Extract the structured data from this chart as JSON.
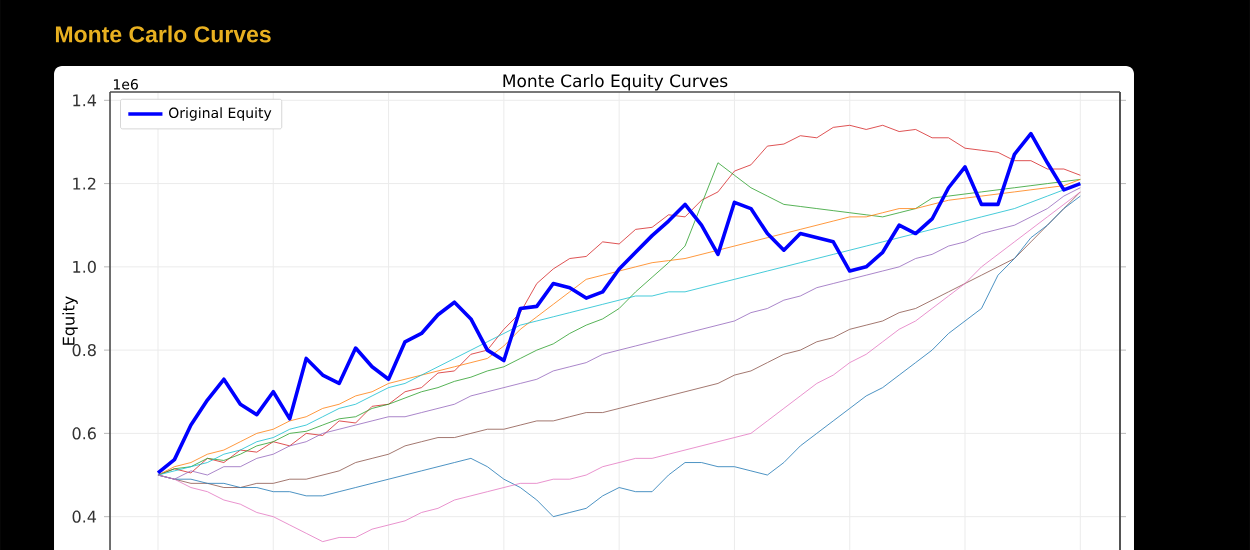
{
  "chart_data": {
    "type": "line",
    "title": "Monte Carlo Curves",
    "subtitle": "Monte Carlo Equity Curves",
    "ylabel": "Equity",
    "annotations": [
      "1e6"
    ],
    "categories": [
      null,
      null,
      null,
      null,
      null,
      null,
      null,
      null,
      null,
      null,
      null,
      null,
      null,
      null,
      null,
      null,
      null,
      null,
      null,
      null,
      null,
      null,
      null,
      null,
      null,
      null,
      null,
      null,
      null,
      null,
      null,
      null,
      null,
      null,
      null,
      null,
      null,
      null,
      null,
      null,
      null,
      null,
      null,
      null,
      null,
      null,
      null,
      null,
      null,
      null,
      null,
      null,
      null,
      null,
      null,
      null,
      null
    ],
    "series": [
      {
        "color": "#d62728",
        "values": [
          0.5,
          0.515,
          0.505,
          0.54,
          0.53,
          0.56,
          0.555,
          0.58,
          0.57,
          0.6,
          0.595,
          0.63,
          0.625,
          0.665,
          0.67,
          0.7,
          0.71,
          0.745,
          0.75,
          0.79,
          0.8,
          0.85,
          0.89,
          0.96,
          0.995,
          1.02,
          1.025,
          1.06,
          1.055,
          1.09,
          1.095,
          1.125,
          1.12,
          1.16,
          1.18,
          1.23,
          1.245,
          1.29,
          1.295,
          1.315,
          1.31,
          1.335,
          1.34,
          1.33,
          1.34,
          1.325,
          1.33,
          1.31,
          1.31,
          1.285,
          1.28,
          1.275,
          1.255,
          1.255,
          1.235,
          1.235,
          1.22
        ]
      },
      {
        "color": "#2ca02c",
        "values": [
          0.5,
          0.515,
          0.52,
          0.54,
          0.535,
          0.55,
          0.57,
          0.58,
          0.6,
          0.605,
          0.62,
          0.635,
          0.64,
          0.66,
          0.67,
          0.685,
          0.7,
          0.71,
          0.725,
          0.735,
          0.75,
          0.76,
          0.78,
          0.8,
          0.815,
          0.84,
          0.86,
          0.875,
          0.9,
          0.94,
          0.975,
          1.01,
          1.05,
          1.15,
          1.25,
          1.22,
          1.19,
          1.17,
          1.15,
          1.145,
          1.14,
          1.135,
          1.13,
          1.125,
          1.12,
          1.13,
          1.14,
          1.165,
          1.17,
          1.175,
          1.18,
          1.185,
          1.19,
          1.195,
          1.2,
          1.205,
          1.21
        ]
      },
      {
        "color": "#ff7f0e",
        "values": [
          0.5,
          0.52,
          0.53,
          0.55,
          0.56,
          0.58,
          0.6,
          0.61,
          0.63,
          0.64,
          0.66,
          0.67,
          0.69,
          0.7,
          0.72,
          0.73,
          0.74,
          0.75,
          0.76,
          0.77,
          0.78,
          0.81,
          0.85,
          0.88,
          0.91,
          0.94,
          0.97,
          0.98,
          0.99,
          1.0,
          1.01,
          1.015,
          1.02,
          1.03,
          1.04,
          1.05,
          1.06,
          1.07,
          1.08,
          1.09,
          1.1,
          1.11,
          1.12,
          1.12,
          1.13,
          1.14,
          1.14,
          1.15,
          1.16,
          1.165,
          1.17,
          1.175,
          1.18,
          1.185,
          1.19,
          1.195,
          1.21
        ]
      },
      {
        "color": "#9467bd",
        "values": [
          0.5,
          0.49,
          0.51,
          0.5,
          0.52,
          0.52,
          0.54,
          0.55,
          0.57,
          0.58,
          0.6,
          0.61,
          0.62,
          0.63,
          0.64,
          0.64,
          0.65,
          0.66,
          0.67,
          0.69,
          0.7,
          0.71,
          0.72,
          0.73,
          0.75,
          0.76,
          0.77,
          0.79,
          0.8,
          0.81,
          0.82,
          0.83,
          0.84,
          0.85,
          0.86,
          0.87,
          0.89,
          0.9,
          0.92,
          0.93,
          0.95,
          0.96,
          0.97,
          0.98,
          0.99,
          1.0,
          1.02,
          1.03,
          1.05,
          1.06,
          1.08,
          1.09,
          1.1,
          1.12,
          1.14,
          1.17,
          1.19
        ]
      },
      {
        "color": "#8c564b",
        "values": [
          0.5,
          0.49,
          0.48,
          0.48,
          0.47,
          0.47,
          0.48,
          0.48,
          0.49,
          0.49,
          0.5,
          0.51,
          0.53,
          0.54,
          0.55,
          0.57,
          0.58,
          0.59,
          0.59,
          0.6,
          0.61,
          0.61,
          0.62,
          0.63,
          0.63,
          0.64,
          0.65,
          0.65,
          0.66,
          0.67,
          0.68,
          0.69,
          0.7,
          0.71,
          0.72,
          0.74,
          0.75,
          0.77,
          0.79,
          0.8,
          0.82,
          0.83,
          0.85,
          0.86,
          0.87,
          0.89,
          0.9,
          0.92,
          0.94,
          0.96,
          0.98,
          1.0,
          1.02,
          1.06,
          1.1,
          1.14,
          1.18
        ]
      },
      {
        "color": "#17becf",
        "values": [
          0.5,
          0.51,
          0.52,
          0.53,
          0.55,
          0.56,
          0.58,
          0.59,
          0.61,
          0.62,
          0.64,
          0.66,
          0.67,
          0.69,
          0.71,
          0.72,
          0.74,
          0.76,
          0.78,
          0.8,
          0.82,
          0.84,
          0.86,
          0.87,
          0.88,
          0.89,
          0.9,
          0.91,
          0.92,
          0.93,
          0.93,
          0.94,
          0.94,
          0.95,
          0.96,
          0.97,
          0.98,
          0.99,
          1.0,
          1.01,
          1.02,
          1.03,
          1.04,
          1.05,
          1.06,
          1.07,
          1.08,
          1.09,
          1.1,
          1.11,
          1.12,
          1.13,
          1.14,
          1.155,
          1.17,
          1.185,
          1.2
        ]
      },
      {
        "color": "#1f77b4",
        "values": [
          0.5,
          0.49,
          0.49,
          0.48,
          0.48,
          0.47,
          0.47,
          0.46,
          0.46,
          0.45,
          0.45,
          0.46,
          0.47,
          0.48,
          0.49,
          0.5,
          0.51,
          0.52,
          0.53,
          0.54,
          0.52,
          0.49,
          0.47,
          0.44,
          0.4,
          0.41,
          0.42,
          0.45,
          0.47,
          0.46,
          0.46,
          0.5,
          0.53,
          0.53,
          0.52,
          0.52,
          0.51,
          0.5,
          0.53,
          0.57,
          0.6,
          0.63,
          0.66,
          0.69,
          0.71,
          0.74,
          0.77,
          0.8,
          0.84,
          0.87,
          0.9,
          0.98,
          1.02,
          1.07,
          1.1,
          1.14,
          1.17
        ]
      },
      {
        "color": "#e377c2",
        "values": [
          0.5,
          0.49,
          0.47,
          0.46,
          0.44,
          0.43,
          0.41,
          0.4,
          0.38,
          0.36,
          0.34,
          0.35,
          0.35,
          0.37,
          0.38,
          0.39,
          0.41,
          0.42,
          0.44,
          0.45,
          0.46,
          0.47,
          0.48,
          0.48,
          0.49,
          0.49,
          0.5,
          0.52,
          0.53,
          0.54,
          0.54,
          0.55,
          0.56,
          0.57,
          0.58,
          0.59,
          0.6,
          0.63,
          0.66,
          0.69,
          0.72,
          0.74,
          0.77,
          0.79,
          0.82,
          0.85,
          0.87,
          0.9,
          0.93,
          0.96,
          1.0,
          1.03,
          1.06,
          1.09,
          1.12,
          1.15,
          1.18
        ]
      },
      {
        "name": "Original Equity",
        "color": "#0000ff",
        "values": [
          0.505,
          0.537,
          0.62,
          0.68,
          0.73,
          0.67,
          0.645,
          0.7,
          0.635,
          0.78,
          0.74,
          0.72,
          0.805,
          0.76,
          0.73,
          0.82,
          0.84,
          0.885,
          0.915,
          0.875,
          0.8,
          0.775,
          0.9,
          0.905,
          0.96,
          0.95,
          0.925,
          0.94,
          0.995,
          1.035,
          1.075,
          1.11,
          1.15,
          1.1,
          1.03,
          1.155,
          1.14,
          1.08,
          1.04,
          1.08,
          1.07,
          1.06,
          0.99,
          1.0,
          1.035,
          1.1,
          1.08,
          1.115,
          1.19,
          1.24,
          1.15,
          1.15,
          1.27,
          1.32,
          1.25,
          1.185,
          1.2
        ]
      }
    ],
    "ylim": [
      0.32,
      1.42
    ],
    "yticks": [
      0.4,
      0.6,
      0.8,
      {
        "value": 1.0,
        "label": "1.0"
      },
      1.2,
      1.4
    ],
    "grid": true,
    "legend": "top left",
    "tick_labels": "y"
  }
}
